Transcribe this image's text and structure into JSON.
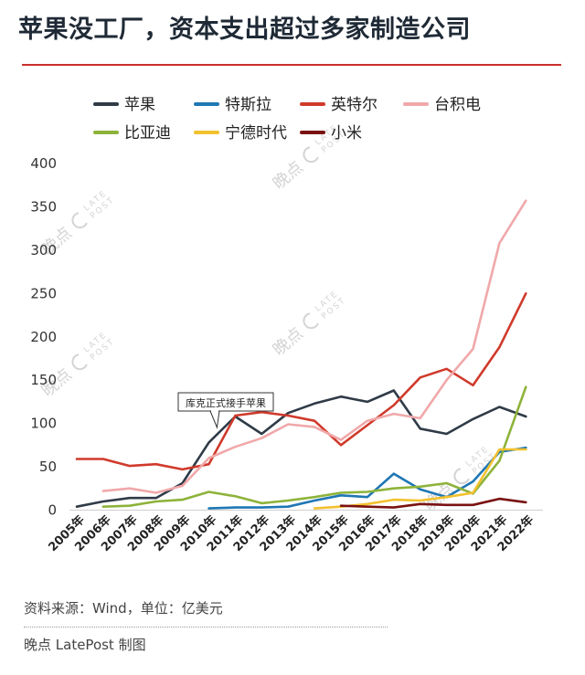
{
  "header": {
    "title": "苹果没工厂，资本支出超过多家制造公司"
  },
  "footer": {
    "source": "资料来源：Wind，单位：亿美元",
    "credit": "晚点 LatePost 制图"
  },
  "watermark": {
    "brand": "晚点",
    "sub_top": "LATE",
    "sub_bottom": "POST"
  },
  "chart_data": {
    "type": "line",
    "title": "苹果没工厂，资本支出超过多家制造公司",
    "xlabel": "",
    "ylabel": "",
    "unit": "亿美元",
    "ylim": [
      0,
      400
    ],
    "yticks": [
      0,
      50,
      100,
      150,
      200,
      250,
      300,
      350,
      400
    ],
    "categories": [
      "2005年",
      "2006年",
      "2007年",
      "2008年",
      "2009年",
      "2010年",
      "2011年",
      "2012年",
      "2013年",
      "2014年",
      "2015年",
      "2016年",
      "2017年",
      "2018年",
      "2019年",
      "2020年",
      "2021年",
      "2022年"
    ],
    "legend_position": "top",
    "series": [
      {
        "name": "苹果",
        "color": "#2f3b47",
        "values": [
          3,
          9,
          13,
          13,
          30,
          77,
          107,
          87,
          111,
          122,
          130,
          124,
          137,
          93,
          87,
          104,
          118,
          107
        ]
      },
      {
        "name": "特斯拉",
        "color": "#1f77b4",
        "values": [
          null,
          null,
          null,
          null,
          null,
          1,
          2,
          2,
          3,
          10,
          16,
          14,
          41,
          23,
          14,
          32,
          66,
          71
        ]
      },
      {
        "name": "英特尔",
        "color": "#d03a2b",
        "values": [
          58,
          58,
          50,
          52,
          46,
          52,
          108,
          112,
          108,
          102,
          74,
          97,
          120,
          152,
          162,
          143,
          187,
          249
        ]
      },
      {
        "name": "台积电",
        "color": "#f0a8aa",
        "values": [
          null,
          21,
          24,
          19,
          27,
          59,
          72,
          82,
          98,
          95,
          80,
          102,
          110,
          105,
          149,
          185,
          307,
          356
        ]
      },
      {
        "name": "比亚迪",
        "color": "#8db33a",
        "values": [
          null,
          3,
          4,
          9,
          11,
          20,
          15,
          7,
          10,
          14,
          19,
          20,
          24,
          26,
          30,
          18,
          56,
          141
        ]
      },
      {
        "name": "宁德时代",
        "color": "#f2c12e",
        "values": [
          null,
          null,
          null,
          null,
          null,
          null,
          null,
          null,
          null,
          1,
          3,
          6,
          11,
          10,
          14,
          19,
          69,
          69
        ]
      },
      {
        "name": "小米",
        "color": "#7a1212",
        "values": [
          null,
          null,
          null,
          null,
          null,
          null,
          null,
          null,
          null,
          null,
          4,
          3,
          2,
          6,
          5,
          5,
          12,
          8
        ]
      }
    ],
    "annotation": {
      "text": "库克正式接手苹果",
      "at_category": "2011年",
      "at_value": 107
    }
  }
}
